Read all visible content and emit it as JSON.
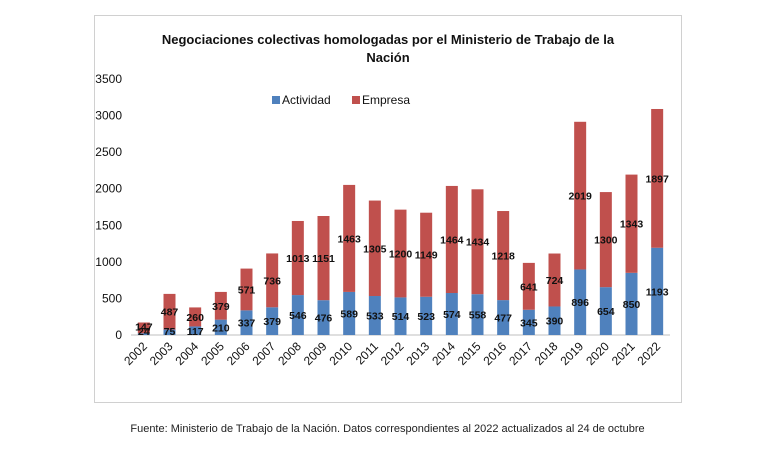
{
  "chart_data": {
    "type": "bar",
    "stacked": true,
    "title_line1": "Negociaciones colectivas homologadas por el Ministerio de Trabajo de la",
    "title_line2": "Nación",
    "categories": [
      "2002",
      "2003",
      "2004",
      "2005",
      "2006",
      "2007",
      "2008",
      "2009",
      "2010",
      "2011",
      "2012",
      "2013",
      "2014",
      "2015",
      "2016",
      "2017",
      "2018",
      "2019",
      "2020",
      "2021",
      "2022"
    ],
    "series": [
      {
        "name": "Actividad",
        "color": "#4f81bd",
        "values": [
          24,
          75,
          117,
          210,
          337,
          379,
          546,
          476,
          589,
          533,
          514,
          523,
          574,
          558,
          477,
          345,
          390,
          896,
          654,
          850,
          1193
        ]
      },
      {
        "name": "Empresa",
        "color": "#c0504d",
        "values": [
          147,
          487,
          260,
          379,
          571,
          736,
          1013,
          1151,
          1463,
          1305,
          1200,
          1149,
          1464,
          1434,
          1218,
          641,
          724,
          2019,
          1300,
          1343,
          1897
        ]
      }
    ],
    "ylim": [
      0,
      3500
    ],
    "yticks": [
      "0",
      "500",
      "1000",
      "1500",
      "2000",
      "2500",
      "3000",
      "3500"
    ],
    "grid": false,
    "legend_position": "top"
  },
  "footer": {
    "source": "Fuente: Ministerio de Trabajo de la Nación. Datos correspondientes al 2022 actualizados al 24 de octubre"
  }
}
